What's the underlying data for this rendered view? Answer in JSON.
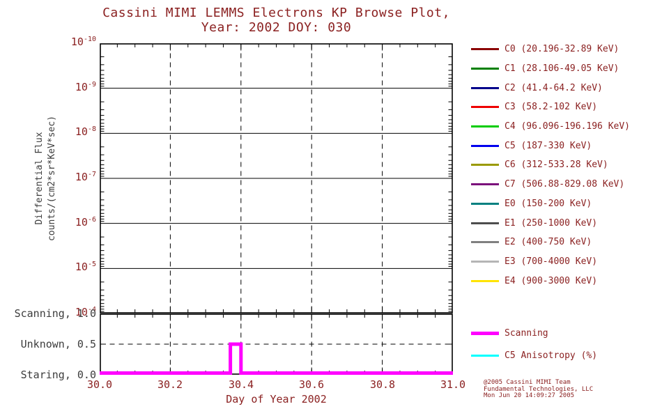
{
  "title": {
    "line1": "Cassini MIMI LEMMS Electrons KP Browse Plot,",
    "line2": "Year: 2002 DOY: 030"
  },
  "colors": {
    "background": "#FFFFFF",
    "text": "#8B2121",
    "status_label_text": "#3C3C3C",
    "axis": "#000000"
  },
  "main_plot": {
    "ylabel_line1": "Differential Flux",
    "ylabel_line2": "counts/(cm2*sr*KeV*sec)",
    "y_ticks": [
      {
        "base": "10",
        "exp": "-10"
      },
      {
        "base": "10",
        "exp": "-9"
      },
      {
        "base": "10",
        "exp": "-8"
      },
      {
        "base": "10",
        "exp": "-7"
      },
      {
        "base": "10",
        "exp": "-6"
      },
      {
        "base": "10",
        "exp": "-5"
      },
      {
        "base": "10",
        "exp": "-4"
      }
    ]
  },
  "status_plot": {
    "labels": [
      "Scanning, 1.0",
      "Unknown, 0.5",
      "Staring, 0.0"
    ]
  },
  "x_axis": {
    "ticks": [
      "30.0",
      "30.2",
      "30.4",
      "30.6",
      "30.8",
      "31.0"
    ],
    "title": "Day of Year 2002"
  },
  "legend": {
    "channels": [
      {
        "label": "C0 (20.196-32.89 KeV)",
        "color": "#8B0000"
      },
      {
        "label": "C1 (28.106-49.05 KeV)",
        "color": "#008000"
      },
      {
        "label": "C2 (41.4-64.2 KeV)",
        "color": "#00008B"
      },
      {
        "label": "C3 (58.2-102 KeV)",
        "color": "#EE0000"
      },
      {
        "label": "C4 (96.096-196.196 KeV)",
        "color": "#00CC00"
      },
      {
        "label": "C5 (187-330 KeV)",
        "color": "#0000EE"
      },
      {
        "label": "C6 (312-533.28 KeV)",
        "color": "#9A9A00"
      },
      {
        "label": "C7 (506.88-829.08 KeV)",
        "color": "#7B0F7B"
      },
      {
        "label": "E0 (150-200 KeV)",
        "color": "#008080"
      },
      {
        "label": "E1 (250-1000 KeV)",
        "color": "#4D4D4D"
      },
      {
        "label": "E2 (400-750 KeV)",
        "color": "#808080"
      },
      {
        "label": "E3 (700-4000 KeV)",
        "color": "#B5B5B5"
      },
      {
        "label": "E4 (900-3000 KeV)",
        "color": "#FFE400"
      }
    ],
    "scanning": {
      "label": "Scanning",
      "color": "#FF00FF"
    },
    "anisotropy": {
      "label": "C5 Anisotropy (%)",
      "color": "#00FFFF"
    }
  },
  "credits": {
    "line1": "@2005 Cassini MIMI Team",
    "line2": "Fundamental Technologies, LLC",
    "line3": "Mon Jun 20 14:09:27 2005"
  },
  "chart_data": [
    {
      "type": "line",
      "title": "Cassini MIMI LEMMS Electrons KP Browse Plot, Year: 2002 DOY: 030",
      "xlabel": "Day of Year 2002",
      "ylabel": "Differential Flux counts/(cm2*sr*KeV*sec)",
      "x_range": [
        30.0,
        31.0
      ],
      "x_ticks": [
        30.0,
        30.2,
        30.4,
        30.6,
        30.8,
        31.0
      ],
      "y_scale": "log",
      "y_tick_values": [
        1e-10,
        1e-09,
        1e-08,
        1e-07,
        1e-06,
        1e-05,
        0.0001
      ],
      "y_axis_order": "1e-10 at top, 1e-4 at bottom",
      "grid": true,
      "legend_position": "right",
      "series": [],
      "note": "no flux data traces visible in plot area"
    },
    {
      "type": "line",
      "name": "pointing-status",
      "x_range": [
        30.0,
        31.0
      ],
      "y_levels": [
        {
          "value": 0.0,
          "label": "Staring"
        },
        {
          "value": 0.5,
          "label": "Unknown"
        },
        {
          "value": 1.0,
          "label": "Scanning"
        }
      ],
      "series": [
        {
          "name": "Scanning",
          "color": "#FF00FF",
          "points": [
            [
              30.0,
              0.0
            ],
            [
              30.37,
              0.0
            ],
            [
              30.37,
              0.5
            ],
            [
              30.4,
              0.5
            ],
            [
              30.4,
              0.0
            ],
            [
              31.0,
              0.0
            ]
          ]
        }
      ]
    }
  ]
}
